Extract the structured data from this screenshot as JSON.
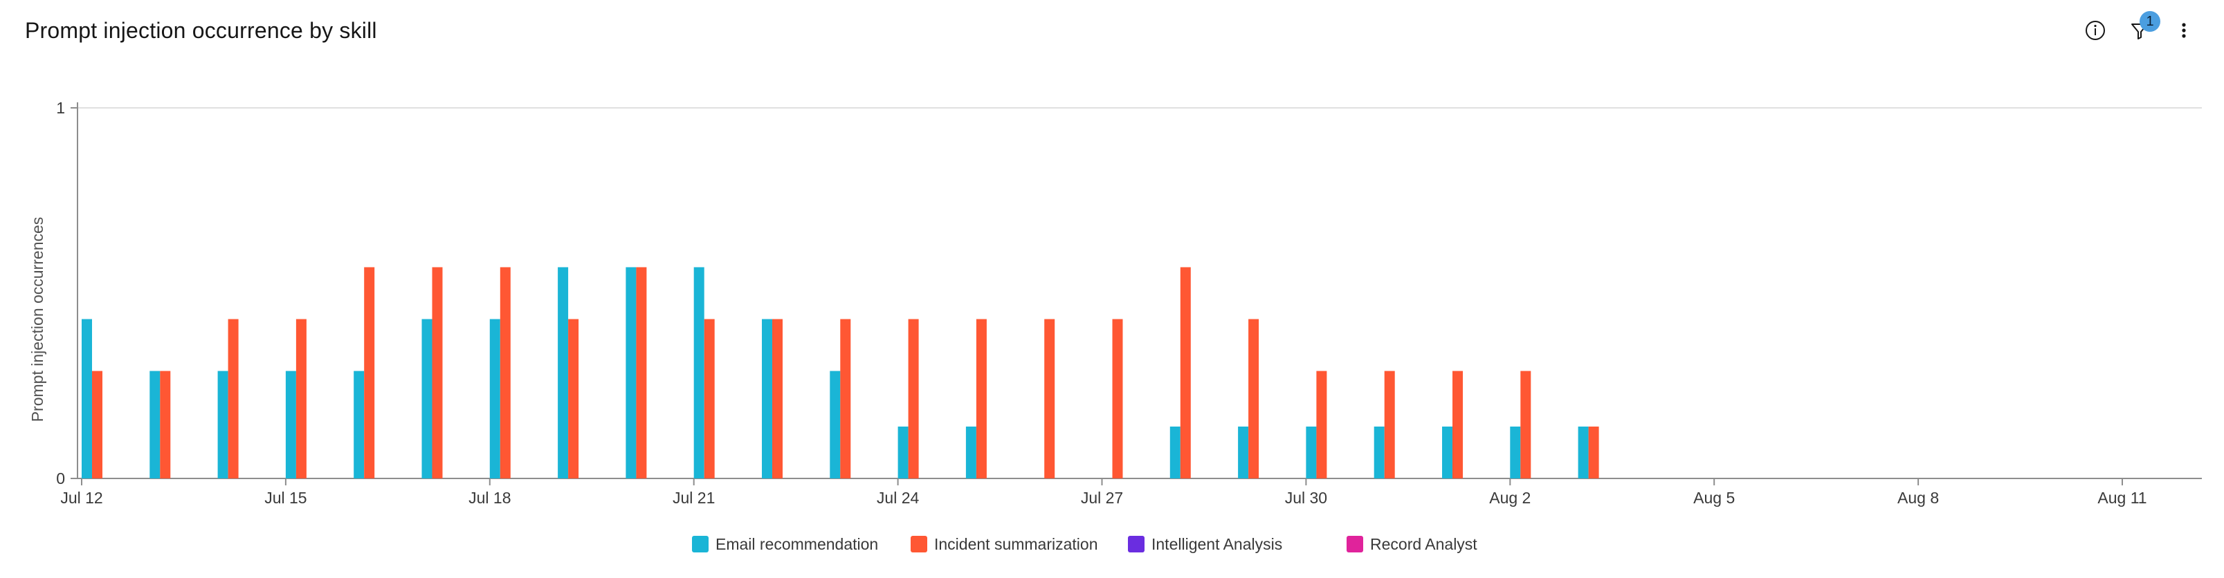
{
  "header": {
    "title": "Prompt injection occurrence by skill",
    "filter_badge": "1"
  },
  "icons": {
    "info": "info-icon",
    "filter": "filter-icon",
    "more": "overflow-menu-vertical-icon"
  },
  "colors": {
    "Email recommendation": "#1ab5d6",
    "Incident summarization": "#ff5733",
    "Intelligent Analysis": "#6a2de0",
    "Record Analyst": "#e0239b"
  },
  "chart_data": {
    "type": "bar",
    "title": "Prompt injection occurrence by skill",
    "xlabel": "",
    "ylabel": "Prompt injection occurrences",
    "ylim": [
      0,
      1
    ],
    "yticks": [
      0,
      1
    ],
    "xticks": [
      "Jul 12",
      "Jul 15",
      "Jul 18",
      "Jul 21",
      "Jul 24",
      "Jul 27",
      "Jul 30",
      "Aug 2",
      "Aug 5",
      "Aug 8",
      "Aug 11"
    ],
    "categories": [
      "Jul 12",
      "Jul 13",
      "Jul 14",
      "Jul 15",
      "Jul 16",
      "Jul 17",
      "Jul 18",
      "Jul 19",
      "Jul 20",
      "Jul 21",
      "Jul 22",
      "Jul 23",
      "Jul 24",
      "Jul 25",
      "Jul 26",
      "Jul 27",
      "Jul 28",
      "Jul 29",
      "Jul 30",
      "Jul 31",
      "Aug 1",
      "Aug 2",
      "Aug 3",
      "Aug 4",
      "Aug 5",
      "Aug 6",
      "Aug 7",
      "Aug 8",
      "Aug 9",
      "Aug 10",
      "Aug 11"
    ],
    "series": [
      {
        "name": "Email recommendation",
        "values": [
          0.43,
          0.29,
          0.29,
          0.29,
          0.29,
          0.43,
          0.43,
          0.57,
          0.57,
          0.57,
          0.43,
          0.29,
          0.14,
          0.14,
          0,
          0,
          0.14,
          0.14,
          0.14,
          0.14,
          0.14,
          0.14,
          0.14,
          0,
          0,
          0,
          0,
          0,
          0,
          0,
          0
        ]
      },
      {
        "name": "Incident summarization",
        "values": [
          0.29,
          0.29,
          0.43,
          0.43,
          0.57,
          0.57,
          0.57,
          0.43,
          0.57,
          0.43,
          0.43,
          0.43,
          0.43,
          0.43,
          0.43,
          0.43,
          0.57,
          0.43,
          0.29,
          0.29,
          0.29,
          0.29,
          0.14,
          0,
          0,
          0,
          0,
          0,
          0,
          0,
          0
        ]
      },
      {
        "name": "Intelligent Analysis",
        "values": [
          0,
          0,
          0,
          0,
          0,
          0,
          0,
          0,
          0,
          0,
          0,
          0,
          0,
          0,
          0,
          0,
          0,
          0,
          0,
          0,
          0,
          0,
          0,
          0,
          0,
          0,
          0,
          0,
          0,
          0,
          0
        ]
      },
      {
        "name": "Record Analyst",
        "values": [
          0,
          0,
          0,
          0,
          0,
          0,
          0,
          0,
          0,
          0,
          0,
          0,
          0,
          0,
          0,
          0,
          0,
          0,
          0,
          0,
          0,
          0,
          0,
          0,
          0,
          0,
          0,
          0,
          0,
          0,
          0
        ]
      }
    ],
    "grid": true,
    "legend_position": "bottom-center"
  }
}
